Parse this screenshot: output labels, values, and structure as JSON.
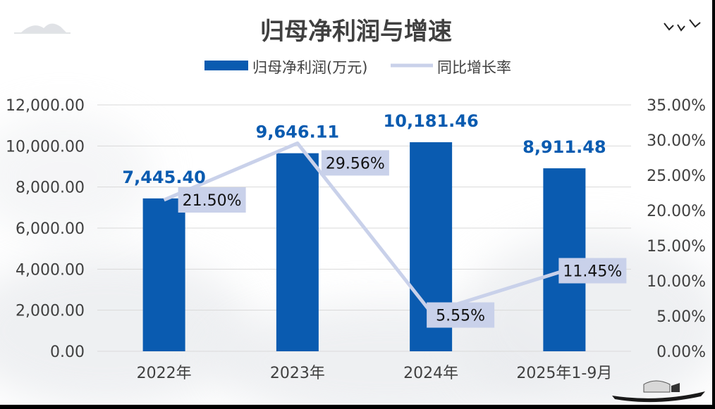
{
  "chart_data": {
    "type": "bar",
    "title": "归母净利润与增速",
    "categories": [
      "2022年",
      "2023年",
      "2024年",
      "2025年1-9月"
    ],
    "series": [
      {
        "name": "归母净利润(万元)",
        "kind": "bar",
        "axis": "left",
        "color": "#0a5bb0",
        "values": [
          7445.4,
          9646.11,
          10181.46,
          8911.48
        ],
        "labels": [
          "7,445.40",
          "9,646.11",
          "10,181.46",
          "8,911.48"
        ]
      },
      {
        "name": "同比增长率",
        "kind": "line",
        "axis": "right",
        "color": "#c9d1ea",
        "values": [
          21.5,
          29.56,
          5.55,
          11.45
        ],
        "labels": [
          "21.50%",
          "29.56%",
          "5.55%",
          "11.45%"
        ]
      }
    ],
    "y_left": {
      "min": 0,
      "max": 12000,
      "step": 2000,
      "ticks": [
        "0.00",
        "2,000.00",
        "4,000.00",
        "6,000.00",
        "8,000.00",
        "10,000.00",
        "12,000.00"
      ]
    },
    "y_right": {
      "min": 0,
      "max": 35,
      "step": 5,
      "ticks": [
        "0.00%",
        "5.00%",
        "10.00%",
        "15.00%",
        "20.00%",
        "25.00%",
        "30.00%",
        "35.00%"
      ]
    },
    "grid": true,
    "legend": "top-center",
    "colors": {
      "bar_label": "#0a5bb0",
      "line_label_bg": "#c9d1ea",
      "axis_text": "#404040",
      "grid": "#d9d9d9"
    }
  }
}
